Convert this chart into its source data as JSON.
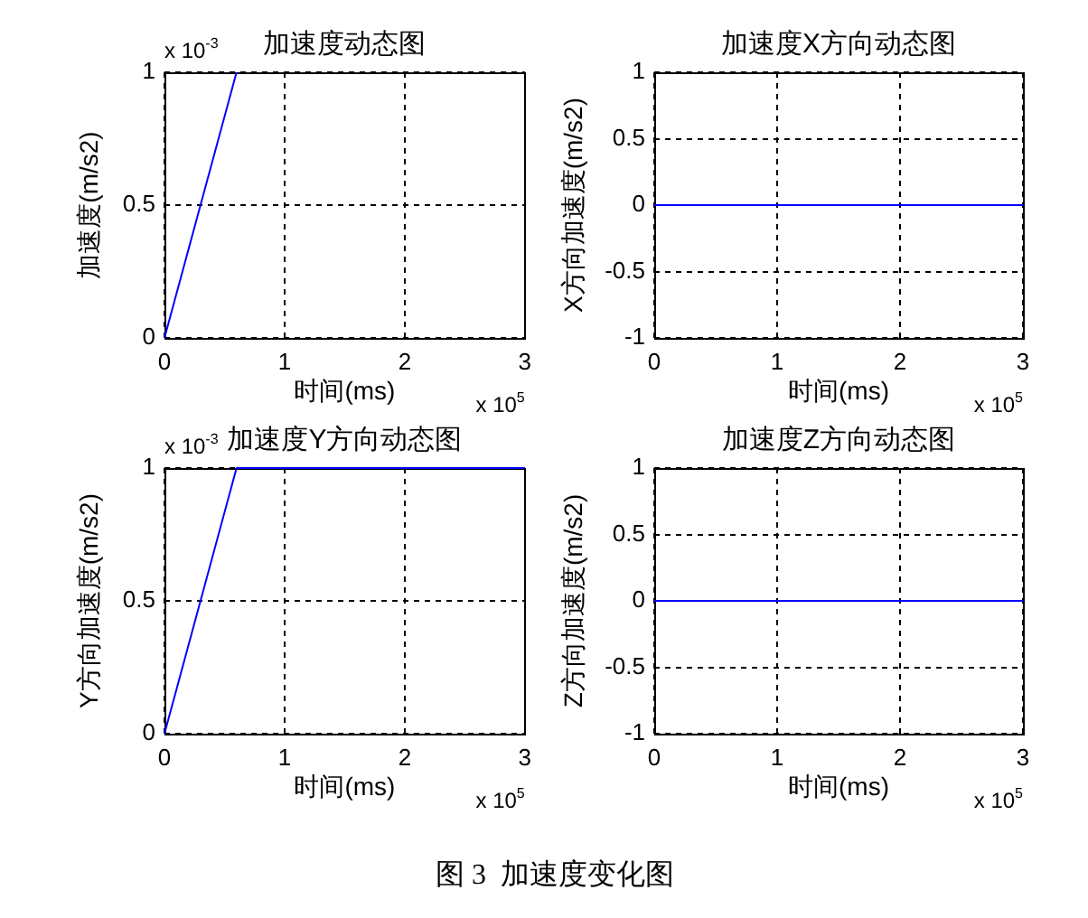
{
  "chart_data": [
    {
      "type": "line",
      "title": "加速度动态图",
      "xlabel": "时间(ms)",
      "ylabel": "加速度(m/s2)",
      "x": [
        0,
        0.6
      ],
      "values": [
        0,
        1
      ],
      "color": "#0000ff",
      "xlim": [
        0,
        3
      ],
      "xticks": [
        0,
        1,
        2,
        3
      ],
      "ylim": [
        0,
        1
      ],
      "yticks": [
        0,
        0.5,
        1
      ],
      "grid": true,
      "marker": "none",
      "line_style": "solid",
      "annotations": [
        "x 10$^{5}$",
        "x 10$^{-3}$",
        "图 3  加速度变化图"
      ]
    },
    {
      "type": "line",
      "title": "加速度X方向动态图",
      "xlabel": "时间(ms)",
      "ylabel": "X方向加速度(m/s2)",
      "x": [
        0,
        3
      ],
      "values": [
        0,
        0
      ],
      "color": "#0000ff",
      "xlim": [
        0,
        3
      ],
      "xticks": [
        0,
        1,
        2,
        3
      ],
      "ylim": [
        -1,
        1
      ],
      "yticks": [
        -1,
        -0.5,
        0,
        0.5,
        1
      ],
      "grid": true,
      "marker": "none",
      "line_style": "solid",
      "annotations": [
        "x 10$^{5}$"
      ]
    },
    {
      "type": "line",
      "title": "加速度Y方向动态图",
      "xlabel": "时间(ms)",
      "ylabel": "Y方向加速度(m/s2)",
      "x": [
        0,
        0.6,
        3
      ],
      "values": [
        0,
        1,
        1
      ],
      "color": "#0000ff",
      "xlim": [
        0,
        3
      ],
      "xticks": [
        0,
        1,
        2,
        3
      ],
      "ylim": [
        0,
        1
      ],
      "yticks": [
        0,
        0.5,
        1
      ],
      "grid": true,
      "marker": "none",
      "line_style": "solid",
      "annotations": [
        "x 10$^{5}$",
        "x 10$^{-3}$"
      ]
    },
    {
      "type": "line",
      "title": "加速度Z方向动态图",
      "xlabel": "时间(ms)",
      "ylabel": "Z方向加速度(m/s2)",
      "x": [
        0,
        3
      ],
      "values": [
        0,
        0
      ],
      "color": "#0000ff",
      "xlim": [
        0,
        3
      ],
      "xticks": [
        0,
        1,
        2,
        3
      ],
      "ylim": [
        -1,
        1
      ],
      "yticks": [
        -1,
        -0.5,
        0,
        0.5,
        1
      ],
      "grid": true,
      "marker": "none",
      "line_style": "solid",
      "annotations": [
        "x 10$^{5}$"
      ]
    }
  ]
}
